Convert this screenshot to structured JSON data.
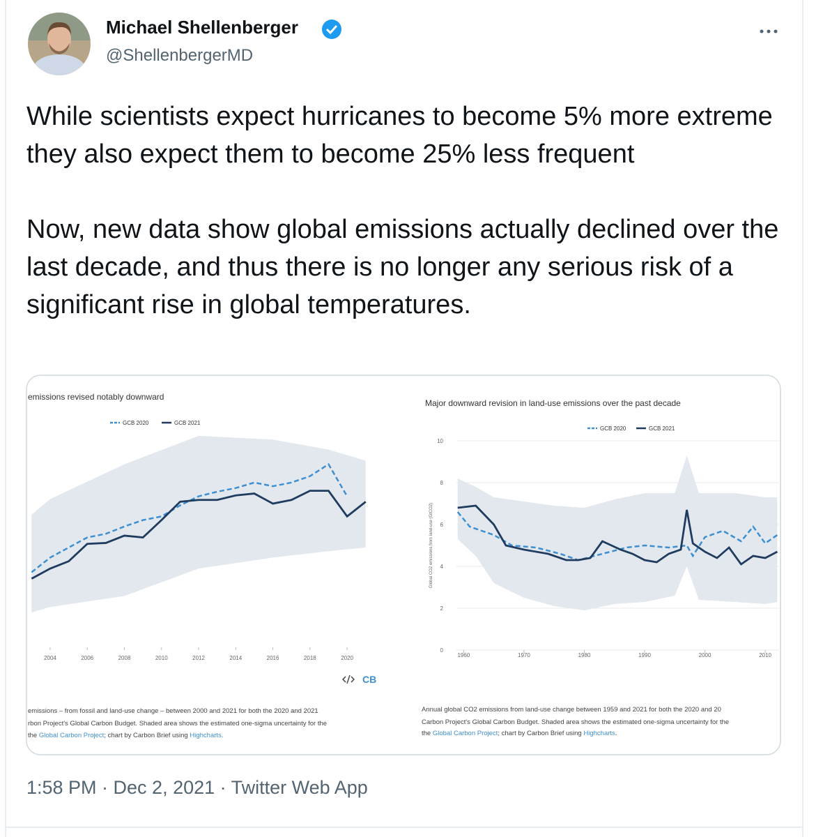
{
  "tweet": {
    "author": {
      "name": "Michael Shellenberger",
      "handle": "@ShellenbergerMD"
    },
    "paragraphs": [
      "While scientists expect hurricanes to become 5% more extreme they also expect them to become 25% less frequent",
      "Now, new data show global emissions actually declined over the last decade, and thus there is no longer any serious risk of a significant rise in global temperatures."
    ],
    "footer": "1:58 PM · Dec 2, 2021 · Twitter Web App"
  },
  "chart_data": [
    {
      "type": "line",
      "title": "emissions revised notably downward",
      "grid": false,
      "logo": "CB",
      "xlim": [
        2002.8,
        2023
      ],
      "xticks": [
        2004,
        2006,
        2008,
        2010,
        2012,
        2014,
        2016,
        2018,
        2020
      ],
      "ylim": [
        25,
        50
      ],
      "band": {
        "color": "#e3e8ef",
        "x": [
          2003,
          2004,
          2008,
          2012,
          2016,
          2019,
          2021
        ],
        "high": [
          39.5,
          41.2,
          45.0,
          48.1,
          47.7,
          46.6,
          45.4
        ],
        "low": [
          28.8,
          29.4,
          30.6,
          33.6,
          34.8,
          35.5,
          35.9
        ]
      },
      "series": [
        {
          "name": "GCB 2020",
          "color": "#3d8fd1",
          "dash": true,
          "x": [
            2003,
            2004,
            2005,
            2006,
            2007,
            2008,
            2009,
            2010,
            2011,
            2012,
            2013,
            2014,
            2015,
            2016,
            2017,
            2018,
            2019,
            2020
          ],
          "values": [
            33.2,
            34.8,
            35.9,
            37.0,
            37.4,
            38.2,
            38.9,
            39.3,
            40.5,
            41.5,
            42.0,
            42.4,
            43.0,
            42.6,
            43.0,
            43.7,
            45.0,
            41.5
          ]
        },
        {
          "name": "GCB 2021",
          "color": "#1f3c5e",
          "dash": false,
          "x": [
            2003,
            2004,
            2005,
            2006,
            2007,
            2008,
            2009,
            2010,
            2011,
            2012,
            2013,
            2014,
            2015,
            2016,
            2017,
            2018,
            2019,
            2020,
            2021
          ],
          "values": [
            32.5,
            33.6,
            34.4,
            36.3,
            36.4,
            37.2,
            37.0,
            38.9,
            40.9,
            41.1,
            41.1,
            41.6,
            41.8,
            40.7,
            41.1,
            42.1,
            42.1,
            39.3,
            40.9
          ]
        }
      ],
      "caption": [
        [
          {
            "text": "emissions – from fossil and land-use change – between 2000 and 2021 for both the 2020 and 2021",
            "link": false
          }
        ],
        [
          {
            "text": "rbon Project's Global Carbon Budget. Shaded area shows the estimated one-sigma uncertainty for the",
            "link": false
          }
        ],
        [
          {
            "text": "the ",
            "link": false
          },
          {
            "text": "Global Carbon Project",
            "link": true
          },
          {
            "text": "; chart by Carbon Brief using ",
            "link": false
          },
          {
            "text": "Highcharts",
            "link": true
          },
          {
            "text": ".",
            "link": false
          }
        ]
      ]
    },
    {
      "type": "line",
      "title": "Major downward revision in land-use emissions over the past decade",
      "grid": true,
      "ylabel": "Global CO2 emissions from land-use (GtCO2)",
      "xlim": [
        1958.8,
        2012.3
      ],
      "xticks": [
        1960,
        1970,
        1980,
        1990,
        2000,
        2010
      ],
      "ylim": [
        0,
        10
      ],
      "yticks": [
        0,
        2,
        4,
        6,
        8,
        10
      ],
      "band": {
        "color": "#e3e8ef",
        "x": [
          1959,
          1962,
          1965,
          1970,
          1975,
          1980,
          1985,
          1990,
          1995,
          1997,
          1999,
          2005,
          2010,
          2012
        ],
        "high": [
          8.2,
          7.8,
          7.3,
          7.1,
          6.9,
          6.8,
          7.2,
          7.5,
          7.5,
          9.3,
          7.5,
          7.5,
          7.3,
          7.3
        ],
        "low": [
          5.3,
          4.5,
          3.2,
          2.5,
          2.1,
          1.9,
          2.2,
          2.3,
          2.6,
          4.0,
          2.4,
          2.3,
          2.2,
          2.3
        ]
      },
      "series": [
        {
          "name": "GCB 2020",
          "color": "#3d8fd1",
          "dash": true,
          "x": [
            1959,
            1961,
            1965,
            1968,
            1972,
            1976,
            1979,
            1983,
            1987,
            1990,
            1994,
            1997,
            1998,
            2000,
            2003,
            2006,
            2008,
            2010,
            2012
          ],
          "values": [
            6.6,
            5.9,
            5.5,
            5.0,
            4.9,
            4.6,
            4.3,
            4.6,
            4.9,
            5.0,
            4.9,
            5.0,
            4.5,
            5.4,
            5.7,
            5.2,
            5.9,
            5.1,
            5.5
          ]
        },
        {
          "name": "GCB 2021",
          "color": "#1f3c5e",
          "dash": false,
          "x": [
            1959,
            1962,
            1965,
            1967,
            1970,
            1974,
            1977,
            1979,
            1981,
            1983,
            1986,
            1988,
            1990,
            1992,
            1994,
            1996,
            1997,
            1998,
            2000,
            2002,
            2004,
            2006,
            2008,
            2010,
            2012
          ],
          "values": [
            6.8,
            6.9,
            6.0,
            5.0,
            4.8,
            4.6,
            4.3,
            4.3,
            4.4,
            5.2,
            4.8,
            4.6,
            4.3,
            4.2,
            4.6,
            4.8,
            6.7,
            5.1,
            4.7,
            4.4,
            4.9,
            4.1,
            4.5,
            4.4,
            4.7
          ]
        }
      ],
      "caption": [
        [
          {
            "text": "Annual global CO2 emissions from land-use change between 1959 and 2021 for both the 2020 and 20",
            "link": false
          }
        ],
        [
          {
            "text": "Carbon Project's Global Carbon Budget. Shaded area shows the estimated one-sigma uncertainty for the",
            "link": false
          }
        ],
        [
          {
            "text": "the ",
            "link": false
          },
          {
            "text": "Global Carbon Project",
            "link": true
          },
          {
            "text": "; chart by Carbon Brief using ",
            "link": false
          },
          {
            "text": "Highcharts",
            "link": true
          },
          {
            "text": ".",
            "link": false
          }
        ]
      ]
    }
  ]
}
